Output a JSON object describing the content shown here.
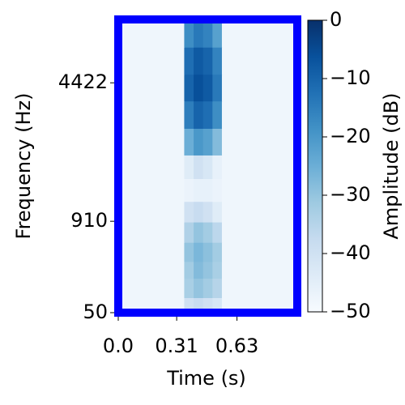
{
  "chart_data": {
    "type": "spectrogram",
    "xlabel": "Time (s)",
    "ylabel": "Frequency (Hz)",
    "colorbar_label": "Amplitude (dB)",
    "colormap": "Blues",
    "frame_color": "#0000ff",
    "yscale": "mel",
    "xlim": [
      0,
      0.95
    ],
    "ylim": [
      50,
      8000
    ],
    "xticks": [
      {
        "value": 0,
        "label": "0.0"
      },
      0.31,
      0.63
    ],
    "yticks": [
      50,
      910,
      4422
    ],
    "clim": [
      -50,
      0
    ],
    "cticks": [
      0,
      {
        "value": -10,
        "label": "−10"
      },
      {
        "value": -20,
        "label": "−20"
      },
      {
        "value": -30,
        "label": "−30"
      },
      {
        "value": -40,
        "label": "−40"
      },
      {
        "value": -50,
        "label": "−50"
      }
    ],
    "time_bins": [
      0,
      0.1,
      0.2,
      0.3,
      0.35,
      0.4,
      0.45,
      0.5,
      0.55,
      0.6,
      0.7,
      0.8,
      0.95
    ],
    "freq_bins": [
      50,
      150,
      300,
      450,
      650,
      900,
      1200,
      1600,
      2100,
      2800,
      3700,
      4800,
      6200,
      8000
    ],
    "values": [
      [
        -48,
        -48,
        -48,
        -48,
        -40,
        -38,
        -40,
        -42,
        -48,
        -48,
        -48,
        -48
      ],
      [
        -48,
        -48,
        -48,
        -48,
        -33,
        -30,
        -32,
        -35,
        -48,
        -48,
        -48,
        -48
      ],
      [
        -48,
        -48,
        -48,
        -48,
        -32,
        -28,
        -30,
        -33,
        -48,
        -48,
        -48,
        -48
      ],
      [
        -48,
        -48,
        -48,
        -48,
        -30,
        -27,
        -29,
        -32,
        -48,
        -48,
        -48,
        -48
      ],
      [
        -48,
        -48,
        -48,
        -48,
        -34,
        -30,
        -32,
        -36,
        -48,
        -48,
        -48,
        -48
      ],
      [
        -48,
        -48,
        -48,
        -48,
        -40,
        -38,
        -40,
        -44,
        -48,
        -48,
        -48,
        -48
      ],
      [
        -48,
        -48,
        -48,
        -48,
        -47,
        -46,
        -46,
        -47,
        -48,
        -48,
        -48,
        -48
      ],
      [
        -48,
        -48,
        -48,
        -48,
        -44,
        -40,
        -42,
        -46,
        -48,
        -48,
        -48,
        -48
      ],
      [
        -48,
        -48,
        -48,
        -48,
        -25,
        -20,
        -22,
        -28,
        -48,
        -48,
        -48,
        -48
      ],
      [
        -48,
        -48,
        -48,
        -48,
        -15,
        -10,
        -12,
        -18,
        -48,
        -48,
        -48,
        -48
      ],
      [
        -48,
        -48,
        -48,
        -48,
        -10,
        -6,
        -8,
        -14,
        -48,
        -48,
        -48,
        -48
      ],
      [
        -48,
        -48,
        -48,
        -48,
        -12,
        -8,
        -10,
        -16,
        -48,
        -48,
        -48,
        -48
      ],
      [
        -48,
        -48,
        -48,
        -48,
        -18,
        -14,
        -16,
        -22,
        -48,
        -48,
        -48,
        -48
      ]
    ]
  }
}
